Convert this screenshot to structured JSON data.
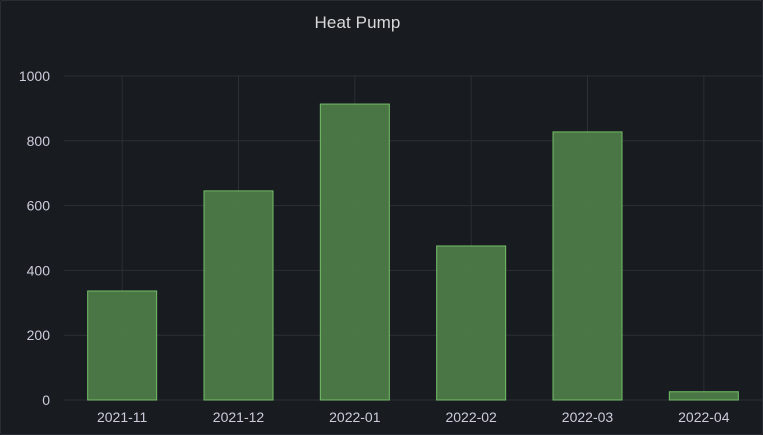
{
  "panel": {
    "title": "Heat Pump"
  },
  "colors": {
    "background": "#181b1f",
    "grid": "#2c2f35",
    "bar_fill": "#4f7d48",
    "bar_stroke": "#73bf69",
    "text": "#ccccdc"
  },
  "chart_data": {
    "type": "bar",
    "title": "Heat Pump",
    "xlabel": "",
    "ylabel": "",
    "categories": [
      "2021-11",
      "2021-12",
      "2022-01",
      "2022-02",
      "2022-03",
      "2022-04"
    ],
    "values": [
      338,
      647,
      915,
      477,
      829,
      27
    ],
    "ylim": [
      0,
      1000
    ],
    "yticks": [
      0,
      200,
      400,
      600,
      800,
      1000
    ],
    "grid": true,
    "legend": "none"
  }
}
